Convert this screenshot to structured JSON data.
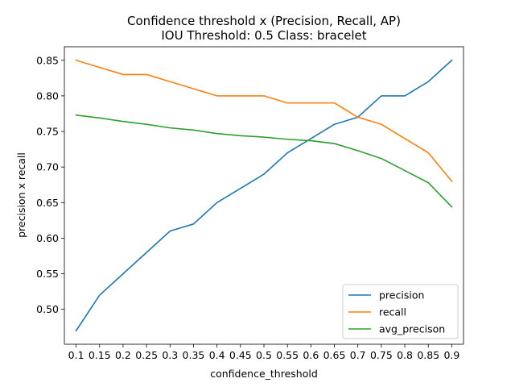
{
  "chart_data": {
    "type": "line",
    "title_line1": "Confidence threshold x (Precision, Recall, AP)",
    "title_line2": "IOU Threshold: 0.5 Class: bracelet",
    "xlabel": "confidence_threshold",
    "ylabel": "precision x recall",
    "x": [
      0.1,
      0.15,
      0.2,
      0.25,
      0.3,
      0.35,
      0.4,
      0.45,
      0.5,
      0.55,
      0.6,
      0.65,
      0.7,
      0.75,
      0.8,
      0.85,
      0.9
    ],
    "x_tick_labels": [
      "0.1",
      "0.15",
      "0.2",
      "0.25",
      "0.3",
      "0.35",
      "0.4",
      "0.45",
      "0.5",
      "0.55",
      "0.6",
      "0.65",
      "0.7",
      "0.75",
      "0.8",
      "0.85",
      "0.9"
    ],
    "y_ticks": [
      0.5,
      0.55,
      0.6,
      0.65,
      0.7,
      0.75,
      0.8,
      0.85
    ],
    "y_tick_labels": [
      "0.50",
      "0.55",
      "0.60",
      "0.65",
      "0.70",
      "0.75",
      "0.80",
      "0.85"
    ],
    "xlim": [
      0.075,
      0.925
    ],
    "ylim": [
      0.451,
      0.869
    ],
    "grid": false,
    "legend_position": "lower right",
    "series": [
      {
        "name": "precision",
        "color": "#1f77b4",
        "values": [
          0.47,
          0.52,
          0.55,
          0.58,
          0.61,
          0.62,
          0.65,
          0.67,
          0.69,
          0.72,
          0.74,
          0.76,
          0.77,
          0.8,
          0.8,
          0.82,
          0.85
        ]
      },
      {
        "name": "recall",
        "color": "#ff7f0e",
        "values": [
          0.85,
          0.84,
          0.83,
          0.83,
          0.82,
          0.81,
          0.8,
          0.8,
          0.8,
          0.79,
          0.79,
          0.79,
          0.77,
          0.76,
          0.74,
          0.72,
          0.68
        ]
      },
      {
        "name": "avg_precison",
        "color": "#2ca02c",
        "values": [
          0.773,
          0.769,
          0.764,
          0.76,
          0.755,
          0.752,
          0.747,
          0.744,
          0.742,
          0.739,
          0.737,
          0.733,
          0.723,
          0.712,
          0.695,
          0.678,
          0.644
        ]
      }
    ]
  }
}
